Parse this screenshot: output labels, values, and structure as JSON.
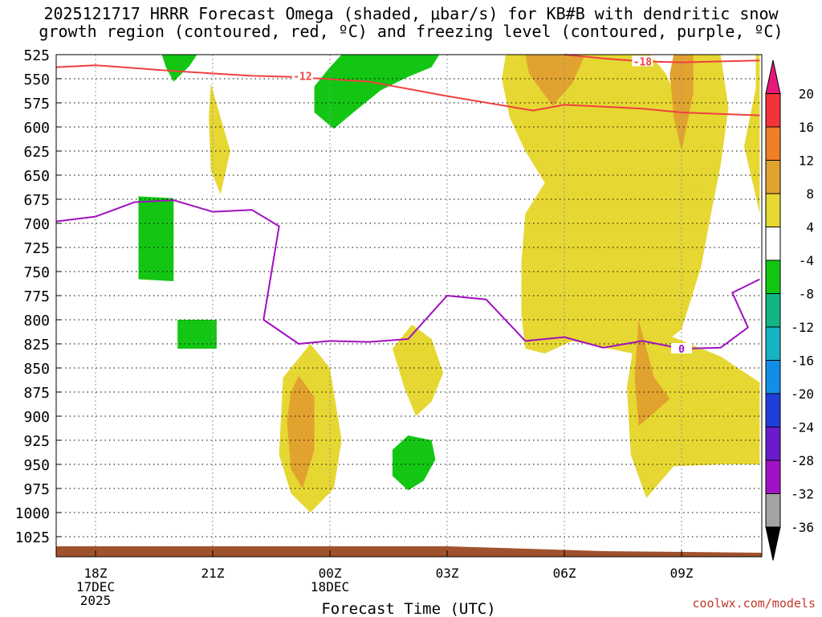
{
  "title_line1": "2025121717 HRRR Forecast Omega (shaded, μbar/s) for KB#B with dendritic snow",
  "title_line2": "growth region (contoured, red, ºC) and freezing level (contoured, purple, ºC)",
  "credit": "coolwx.com/models",
  "chart_data": {
    "type": "heatmap",
    "title": "2025121717 HRRR Forecast Omega (shaded, μbar/s) for KB#B with dendritic snow growth region (contoured, red, ºC) and freezing level (contoured, purple, ºC)",
    "xlabel": "Forecast Time (UTC)",
    "ylabel": "",
    "x_ticks": [
      {
        "hour": 18,
        "lines": [
          "18Z",
          "17DEC",
          "2025"
        ]
      },
      {
        "hour": 21,
        "lines": [
          "21Z"
        ]
      },
      {
        "hour": 24,
        "lines": [
          "00Z",
          "18DEC"
        ]
      },
      {
        "hour": 27,
        "lines": [
          "03Z"
        ]
      },
      {
        "hour": 30,
        "lines": [
          "06Z"
        ]
      },
      {
        "hour": 33,
        "lines": [
          "09Z"
        ]
      }
    ],
    "xlim": [
      17,
      35
    ],
    "ylim_hPa": [
      525,
      1025
    ],
    "y_ticks": [
      "525",
      "550",
      "575",
      "600",
      "625",
      "650",
      "675",
      "700",
      "725",
      "750",
      "775",
      "800",
      "825",
      "850",
      "875",
      "900",
      "925",
      "950",
      "975",
      "1000",
      "1025"
    ],
    "grid": true,
    "colorbar": {
      "labels": [
        "20",
        "16",
        "12",
        "8",
        "4",
        "-4",
        "-8",
        "-12",
        "-16",
        "-20",
        "-24",
        "-28",
        "-32",
        "-36"
      ],
      "bins": [
        {
          "lo": 20,
          "hi": null,
          "color": "#e8197a"
        },
        {
          "lo": 16,
          "hi": 20,
          "color": "#f2333a"
        },
        {
          "lo": 12,
          "hi": 16,
          "color": "#ee7f26"
        },
        {
          "lo": 8,
          "hi": 12,
          "color": "#e2a22f"
        },
        {
          "lo": 4,
          "hi": 8,
          "color": "#e6d733"
        },
        {
          "lo": -4,
          "hi": 4,
          "color": "#ffffff"
        },
        {
          "lo": -8,
          "hi": -4,
          "color": "#13c613"
        },
        {
          "lo": -12,
          "hi": -8,
          "color": "#13b584"
        },
        {
          "lo": -16,
          "hi": -12,
          "color": "#16b3c3"
        },
        {
          "lo": -20,
          "hi": -16,
          "color": "#128ee6"
        },
        {
          "lo": -24,
          "hi": -20,
          "color": "#1e3fdc"
        },
        {
          "lo": -28,
          "hi": -24,
          "color": "#6a1ccc"
        },
        {
          "lo": -32,
          "hi": -28,
          "color": "#a012c7"
        },
        {
          "lo": -36,
          "hi": -32,
          "color": "#a3a3a3"
        },
        {
          "lo": null,
          "hi": -36,
          "color": "#000000"
        }
      ]
    },
    "contours": [
      {
        "name": "-12",
        "color": "#f04040",
        "points": [
          [
            16.8,
            538
          ],
          [
            18,
            536
          ],
          [
            20,
            542
          ],
          [
            22,
            547
          ],
          [
            23,
            548
          ],
          [
            25,
            553
          ],
          [
            27,
            568
          ],
          [
            29.2,
            583
          ],
          [
            30,
            577
          ],
          [
            32,
            581
          ],
          [
            33,
            585
          ],
          [
            35,
            588
          ]
        ]
      },
      {
        "name": "-18",
        "color": "#f04040",
        "points": [
          [
            30,
            524
          ],
          [
            31,
            529
          ],
          [
            32,
            532
          ],
          [
            33,
            533
          ],
          [
            35,
            531
          ]
        ]
      },
      {
        "name": "0",
        "color": "#a010c0",
        "points": [
          [
            16.8,
            698
          ],
          [
            18,
            693
          ],
          [
            19,
            678
          ],
          [
            20,
            676
          ],
          [
            21,
            688
          ],
          [
            22,
            686
          ],
          [
            22.7,
            703
          ],
          [
            22.3,
            800
          ],
          [
            23.2,
            825
          ],
          [
            24,
            822
          ],
          [
            25,
            823
          ],
          [
            26,
            820
          ],
          [
            27,
            775
          ],
          [
            28,
            779
          ],
          [
            29,
            822
          ],
          [
            30,
            818
          ],
          [
            31,
            829
          ],
          [
            32,
            822
          ],
          [
            33,
            830
          ],
          [
            34,
            829
          ],
          [
            34.7,
            808
          ],
          [
            34.3,
            772
          ],
          [
            35,
            758
          ]
        ]
      }
    ],
    "contour_labels": [
      {
        "text": "-12",
        "x": 23.3,
        "y": 547
      },
      {
        "text": "-18",
        "x": 32.0,
        "y": 532
      },
      {
        "text": "0",
        "x": 33.0,
        "y": 830
      }
    ],
    "shaded_regions": [
      {
        "color": "#e6d733",
        "points": [
          [
            31.4,
            525
          ],
          [
            32.2,
            525
          ],
          [
            32.6,
            545
          ],
          [
            33.1,
            590
          ],
          [
            33.5,
            625
          ],
          [
            33.8,
            680
          ],
          [
            33.5,
            745
          ],
          [
            33.0,
            810
          ],
          [
            32.1,
            838
          ],
          [
            30.2,
            822
          ],
          [
            29.5,
            835
          ],
          [
            29.0,
            830
          ],
          [
            28.9,
            795
          ],
          [
            28.9,
            740
          ],
          [
            29.0,
            690
          ],
          [
            29.5,
            658
          ],
          [
            29.0,
            625
          ],
          [
            28.6,
            590
          ],
          [
            28.4,
            550
          ],
          [
            28.5,
            525
          ]
        ]
      },
      {
        "color": "#e6d733",
        "points": [
          [
            33.2,
            825
          ],
          [
            34.0,
            838
          ],
          [
            35,
            865
          ],
          [
            35,
            950
          ],
          [
            34,
            950
          ],
          [
            32.8,
            952
          ],
          [
            32.1,
            985
          ],
          [
            31.7,
            940
          ],
          [
            31.6,
            870
          ],
          [
            31.8,
            820
          ],
          [
            32.6,
            815
          ]
        ]
      },
      {
        "color": "#e6d733",
        "points": [
          [
            33.2,
            525
          ],
          [
            34.0,
            525
          ],
          [
            34.2,
            580
          ],
          [
            34.0,
            640
          ],
          [
            33.8,
            680
          ],
          [
            33.2,
            656
          ],
          [
            33.0,
            600
          ],
          [
            33.1,
            560
          ]
        ]
      },
      {
        "color": "#e6d733",
        "points": [
          [
            34.9,
            525
          ],
          [
            35,
            525
          ],
          [
            35,
            690
          ],
          [
            34.9,
            672
          ],
          [
            34.6,
            620
          ],
          [
            34.9,
            560
          ]
        ]
      },
      {
        "color": "#e6d733",
        "points": [
          [
            20.95,
            555
          ],
          [
            21.2,
            590
          ],
          [
            21.45,
            625
          ],
          [
            21.2,
            670
          ],
          [
            20.95,
            645
          ],
          [
            20.9,
            590
          ]
        ]
      },
      {
        "color": "#e6d733",
        "points": [
          [
            23.5,
            825
          ],
          [
            24.0,
            850
          ],
          [
            24.3,
            925
          ],
          [
            24.1,
            975
          ],
          [
            23.5,
            1000
          ],
          [
            23.0,
            980
          ],
          [
            22.7,
            940
          ],
          [
            22.8,
            860
          ]
        ]
      },
      {
        "color": "#e6d733",
        "points": [
          [
            26.1,
            805
          ],
          [
            26.6,
            820
          ],
          [
            26.9,
            855
          ],
          [
            26.6,
            885
          ],
          [
            26.2,
            900
          ],
          [
            25.9,
            870
          ],
          [
            25.6,
            830
          ]
        ]
      },
      {
        "color": "#e2a22f",
        "points": [
          [
            29.0,
            525
          ],
          [
            30.0,
            525
          ],
          [
            30.5,
            528
          ],
          [
            30.2,
            555
          ],
          [
            29.7,
            578
          ],
          [
            29.1,
            545
          ]
        ]
      },
      {
        "color": "#e2a22f",
        "points": [
          [
            32.8,
            525
          ],
          [
            33.3,
            525
          ],
          [
            33.3,
            565
          ],
          [
            33.0,
            625
          ],
          [
            32.8,
            590
          ],
          [
            32.7,
            545
          ]
        ]
      },
      {
        "color": "#e2a22f",
        "points": [
          [
            23.2,
            858
          ],
          [
            23.6,
            880
          ],
          [
            23.6,
            935
          ],
          [
            23.3,
            975
          ],
          [
            23.0,
            955
          ],
          [
            22.9,
            905
          ],
          [
            23.0,
            875
          ]
        ]
      },
      {
        "color": "#e2a22f",
        "points": [
          [
            31.9,
            800
          ],
          [
            32.3,
            860
          ],
          [
            32.7,
            882
          ],
          [
            32.2,
            900
          ],
          [
            31.9,
            910
          ],
          [
            31.8,
            860
          ]
        ]
      },
      {
        "color": "#13c613",
        "points": [
          [
            19.7,
            523
          ],
          [
            20.6,
            523
          ],
          [
            20.4,
            537
          ],
          [
            20.0,
            553
          ],
          [
            19.8,
            538
          ]
        ]
      },
      {
        "color": "#13c613",
        "points": [
          [
            24.3,
            523
          ],
          [
            26.8,
            523
          ],
          [
            26.6,
            538
          ],
          [
            26.0,
            548
          ],
          [
            25.3,
            562
          ],
          [
            24.6,
            585
          ],
          [
            24.1,
            602
          ],
          [
            23.6,
            585
          ],
          [
            23.6,
            558
          ],
          [
            24.0,
            538
          ]
        ]
      },
      {
        "color": "#13c613",
        "points": [
          [
            19.1,
            672
          ],
          [
            20.0,
            674
          ],
          [
            20.0,
            760
          ],
          [
            19.1,
            758
          ]
        ]
      },
      {
        "color": "#13c613",
        "points": [
          [
            20.1,
            800
          ],
          [
            21.1,
            800
          ],
          [
            21.1,
            830
          ],
          [
            20.1,
            830
          ]
        ]
      },
      {
        "color": "#13c613",
        "points": [
          [
            26.0,
            920
          ],
          [
            26.6,
            925
          ],
          [
            26.7,
            945
          ],
          [
            26.4,
            967
          ],
          [
            26.0,
            977
          ],
          [
            25.6,
            962
          ],
          [
            25.6,
            935
          ]
        ]
      }
    ],
    "terrain_color": "#a0522d"
  }
}
